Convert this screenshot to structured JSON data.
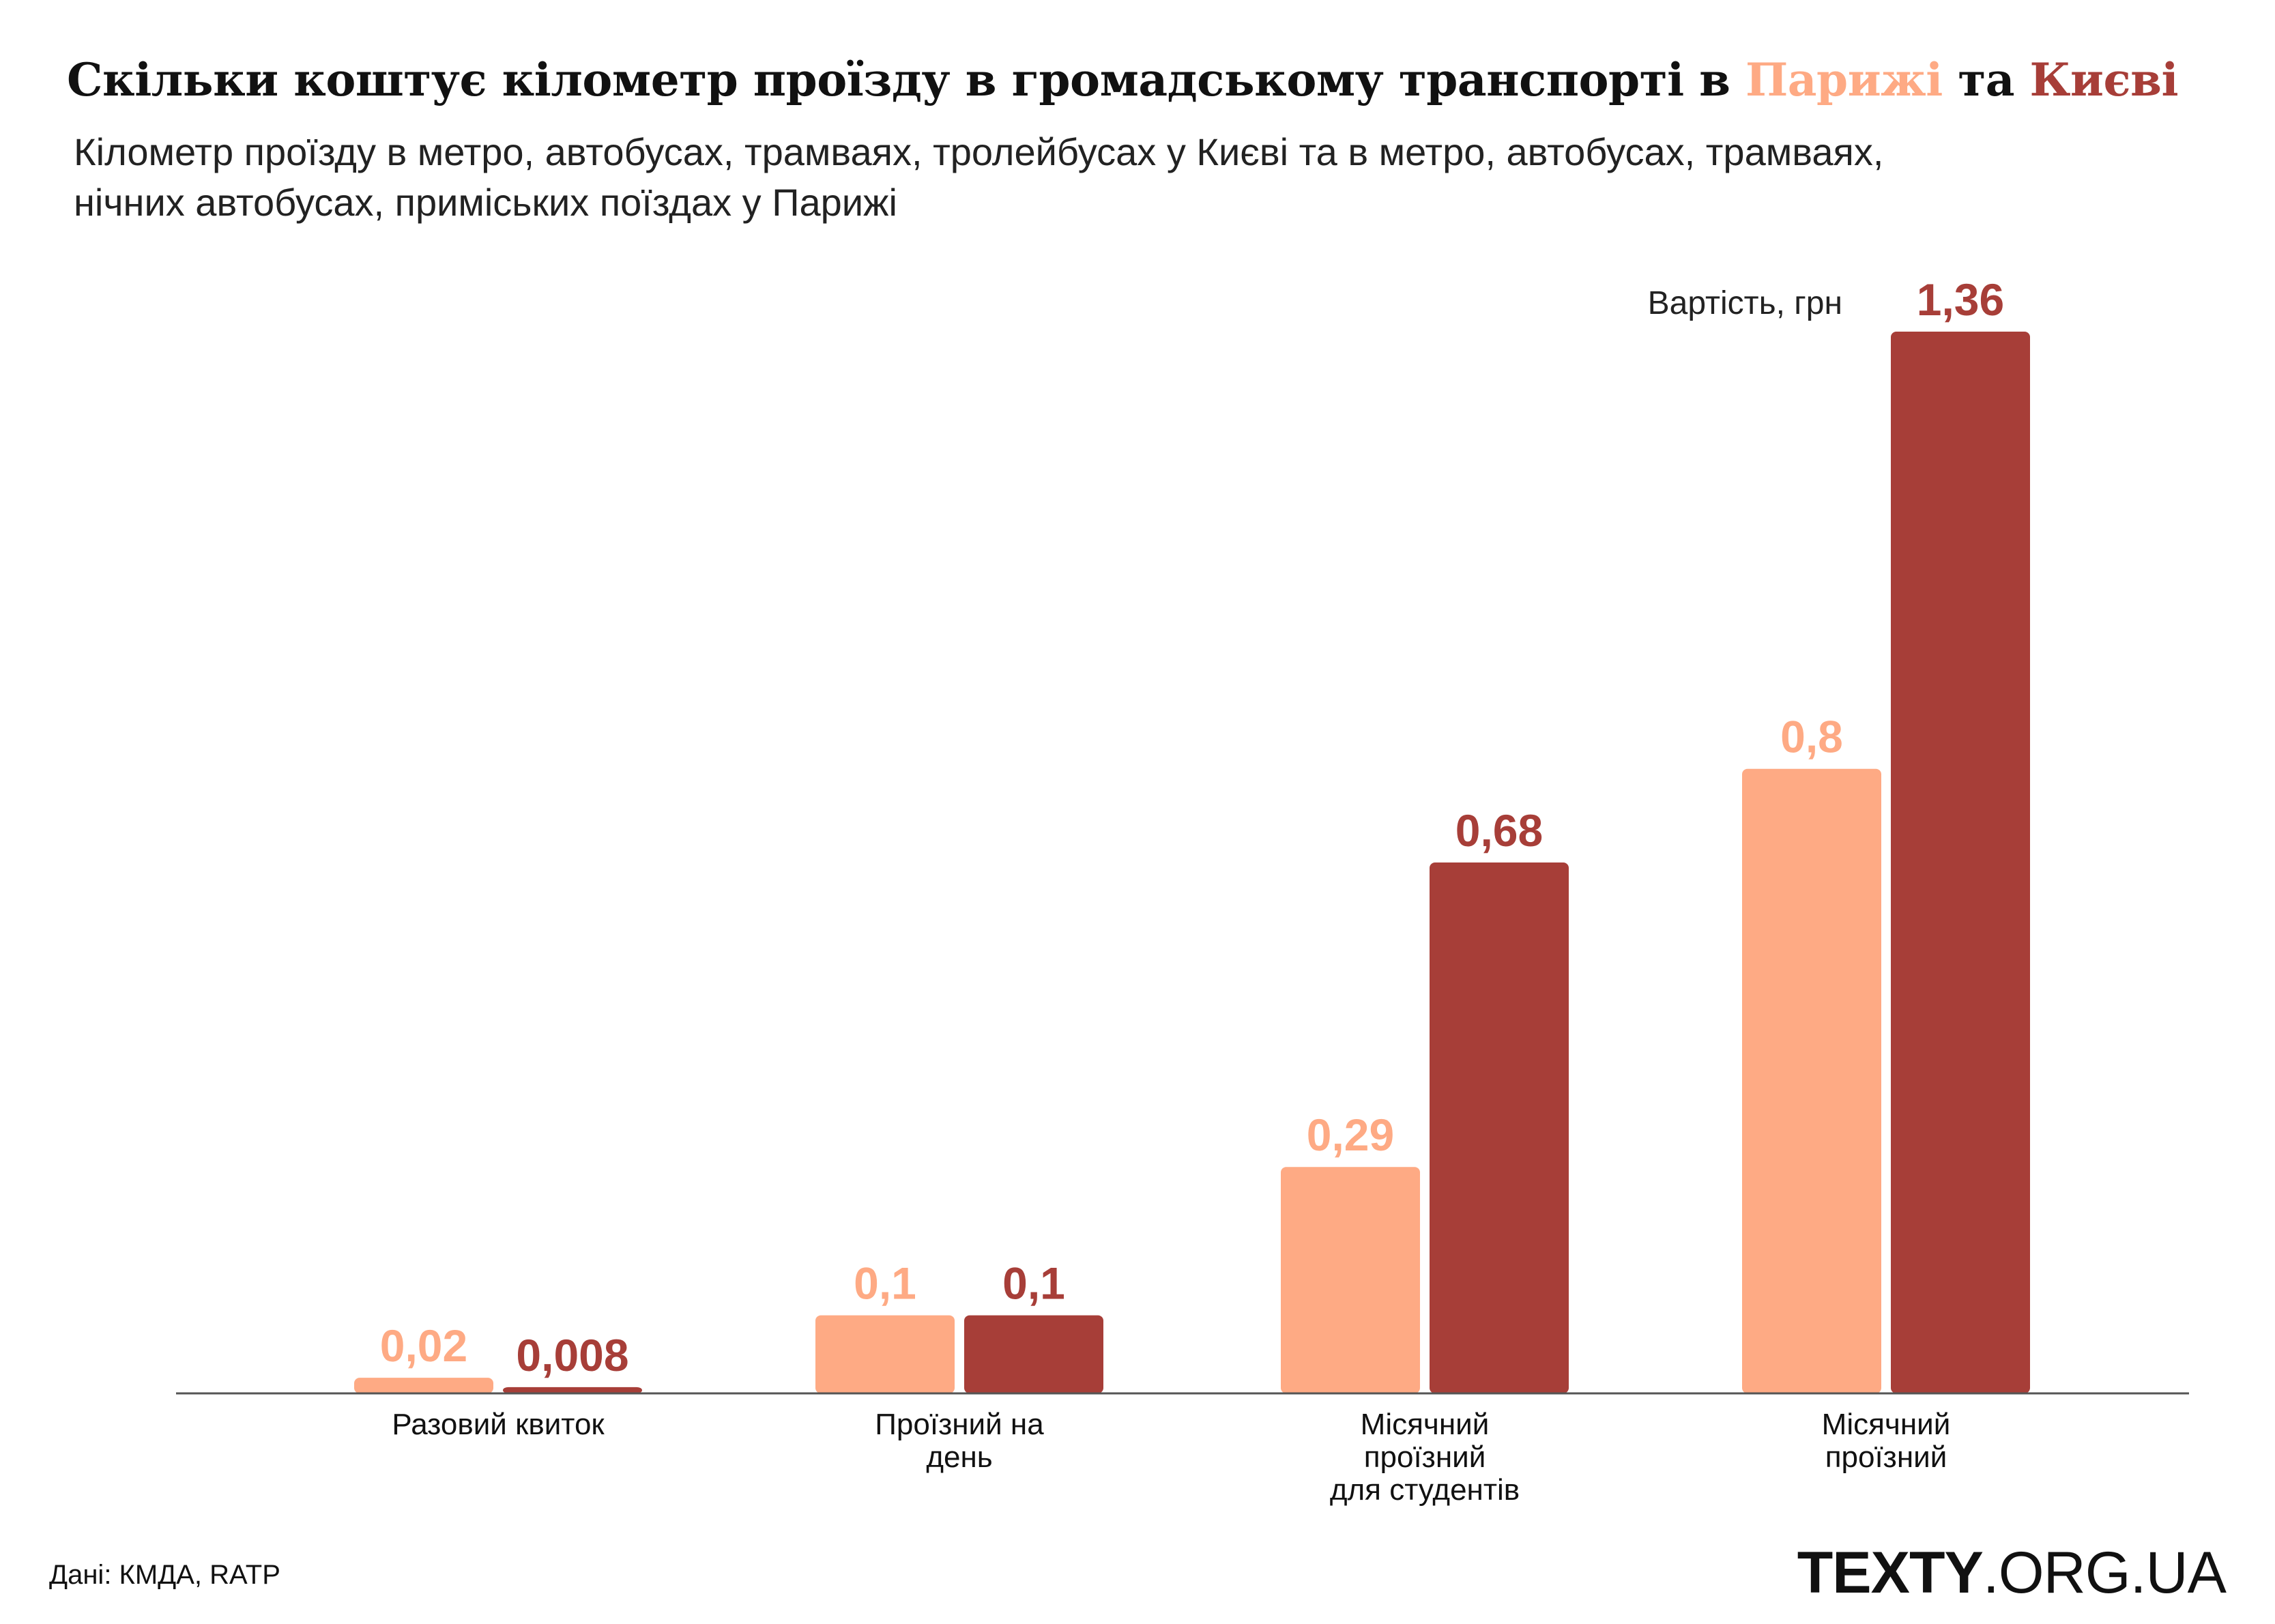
{
  "title": {
    "prefix": "Скільки коштує кілометр проїзду в громадському транспорті в ",
    "paris": "Парижі",
    "middle": " та ",
    "kyiv": "Києві"
  },
  "subtitle_line1": "Кілометр проїзду в метро, автобусах, трамваях, тролейбусах у Києві та в метро, автобусах, трамваях,",
  "subtitle_line2": "нічних автобусах, приміських поїздах у Парижі",
  "colors": {
    "paris": "#FEAA84",
    "kyiv": "#A73E38",
    "axis": "#555555"
  },
  "chart_data": {
    "type": "bar",
    "ylabel": "Вартість, грн",
    "ylim": [
      0,
      1.36
    ],
    "categories": [
      [
        "Разовий квиток"
      ],
      [
        "Проїзний на",
        "день"
      ],
      [
        "Місячний",
        "проїзний",
        "для студентів"
      ],
      [
        "Місячний",
        "проїзний"
      ]
    ],
    "series": [
      {
        "color": "#FEAA84",
        "values": [
          0.02,
          0.1,
          0.29,
          0.8
        ],
        "labels": [
          "0,02",
          "0,1",
          "0,29",
          "0,8"
        ]
      },
      {
        "color": "#A73E38",
        "values": [
          0.008,
          0.1,
          0.68,
          1.36
        ],
        "labels": [
          "0,008",
          "0,1",
          "0,68",
          "1,36"
        ]
      }
    ]
  },
  "source": "Дані: КМДА, RATP",
  "logo": {
    "bold": "TEXTY",
    "rest": ".ORG.UA"
  }
}
